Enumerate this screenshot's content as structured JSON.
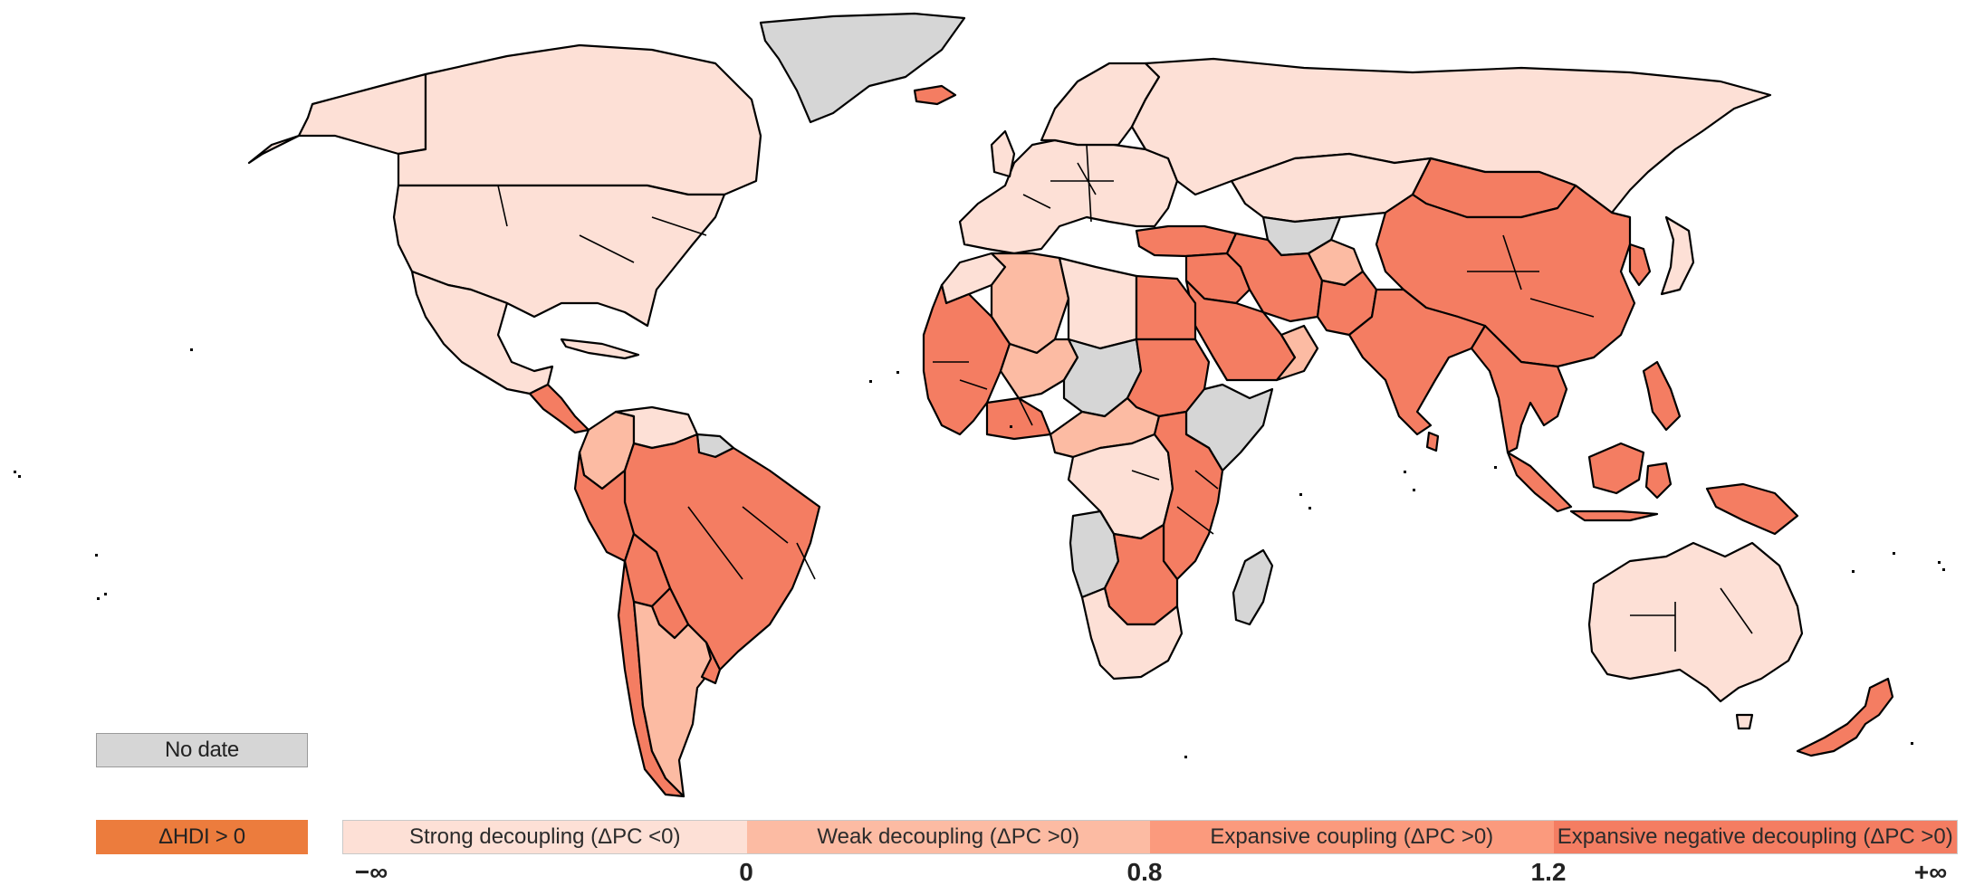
{
  "legend": {
    "no_data_label": "No date",
    "hdi_label": "ΔHDI > 0",
    "scale": [
      {
        "label": "Strong decoupling (ΔPC <0)",
        "color": "#fde0d6"
      },
      {
        "label": "Weak decoupling (ΔPC >0)",
        "color": "#fcbba3"
      },
      {
        "label": "Expansive coupling (ΔPC >0)",
        "color": "#fb9a7d"
      },
      {
        "label": "Expansive negative decoupling (ΔPC >0)",
        "color": "#f47d62"
      }
    ],
    "ticks": [
      "−∞",
      "0",
      "0.8",
      "1.2",
      "+∞"
    ]
  },
  "colors": {
    "no_data": "#d6d6d6",
    "hdi": "#ec7c3d",
    "strong": "#fde0d6",
    "weak": "#fcbba3",
    "expansive": "#fb9a7d",
    "negative": "#f47d62",
    "border": "#000000"
  },
  "map": {
    "regions": [
      {
        "name": "alaska",
        "category": "strong"
      },
      {
        "name": "canada",
        "category": "strong"
      },
      {
        "name": "usa",
        "category": "strong"
      },
      {
        "name": "mexico",
        "category": "strong"
      },
      {
        "name": "central-america",
        "category": "negative"
      },
      {
        "name": "cuba",
        "category": "strong"
      },
      {
        "name": "greenland",
        "category": "no_data"
      },
      {
        "name": "iceland",
        "category": "negative"
      },
      {
        "name": "colombia",
        "category": "weak"
      },
      {
        "name": "venezuela",
        "category": "strong"
      },
      {
        "name": "guianas",
        "category": "no_data"
      },
      {
        "name": "brazil",
        "category": "negative"
      },
      {
        "name": "peru",
        "category": "negative"
      },
      {
        "name": "bolivia",
        "category": "negative"
      },
      {
        "name": "paraguay",
        "category": "negative"
      },
      {
        "name": "chile",
        "category": "negative"
      },
      {
        "name": "argentina",
        "category": "weak"
      },
      {
        "name": "uruguay",
        "category": "negative"
      },
      {
        "name": "europe",
        "category": "strong"
      },
      {
        "name": "scandinavia",
        "category": "strong"
      },
      {
        "name": "russia",
        "category": "strong"
      },
      {
        "name": "turkey",
        "category": "negative"
      },
      {
        "name": "kazakhstan",
        "category": "strong"
      },
      {
        "name": "central-asia",
        "category": "no_data"
      },
      {
        "name": "mongolia",
        "category": "negative"
      },
      {
        "name": "china",
        "category": "negative"
      },
      {
        "name": "korea",
        "category": "negative"
      },
      {
        "name": "japan",
        "category": "strong"
      },
      {
        "name": "middle-east",
        "category": "negative"
      },
      {
        "name": "arabia",
        "category": "negative"
      },
      {
        "name": "oman",
        "category": "weak"
      },
      {
        "name": "iran",
        "category": "negative"
      },
      {
        "name": "afghanistan",
        "category": "weak"
      },
      {
        "name": "pakistan",
        "category": "negative"
      },
      {
        "name": "india",
        "category": "negative"
      },
      {
        "name": "southeast-asia",
        "category": "negative"
      },
      {
        "name": "indonesia",
        "category": "negative"
      },
      {
        "name": "borneo",
        "category": "negative"
      },
      {
        "name": "philippines",
        "category": "negative"
      },
      {
        "name": "new-guinea",
        "category": "negative"
      },
      {
        "name": "australia",
        "category": "strong"
      },
      {
        "name": "new-zealand",
        "category": "negative"
      },
      {
        "name": "morocco",
        "category": "strong"
      },
      {
        "name": "algeria",
        "category": "weak"
      },
      {
        "name": "libya",
        "category": "strong"
      },
      {
        "name": "egypt",
        "category": "negative"
      },
      {
        "name": "west-africa",
        "category": "negative"
      },
      {
        "name": "sahel-mali",
        "category": "weak"
      },
      {
        "name": "niger-chad",
        "category": "no_data"
      },
      {
        "name": "sudan",
        "category": "negative"
      },
      {
        "name": "ethiopia-somalia",
        "category": "no_data"
      },
      {
        "name": "central-africa",
        "category": "weak"
      },
      {
        "name": "drc",
        "category": "strong"
      },
      {
        "name": "east-africa",
        "category": "negative"
      },
      {
        "name": "angola",
        "category": "no_data"
      },
      {
        "name": "southern-africa",
        "category": "negative"
      },
      {
        "name": "south-africa",
        "category": "strong"
      },
      {
        "name": "madagascar",
        "category": "no_data"
      }
    ]
  }
}
